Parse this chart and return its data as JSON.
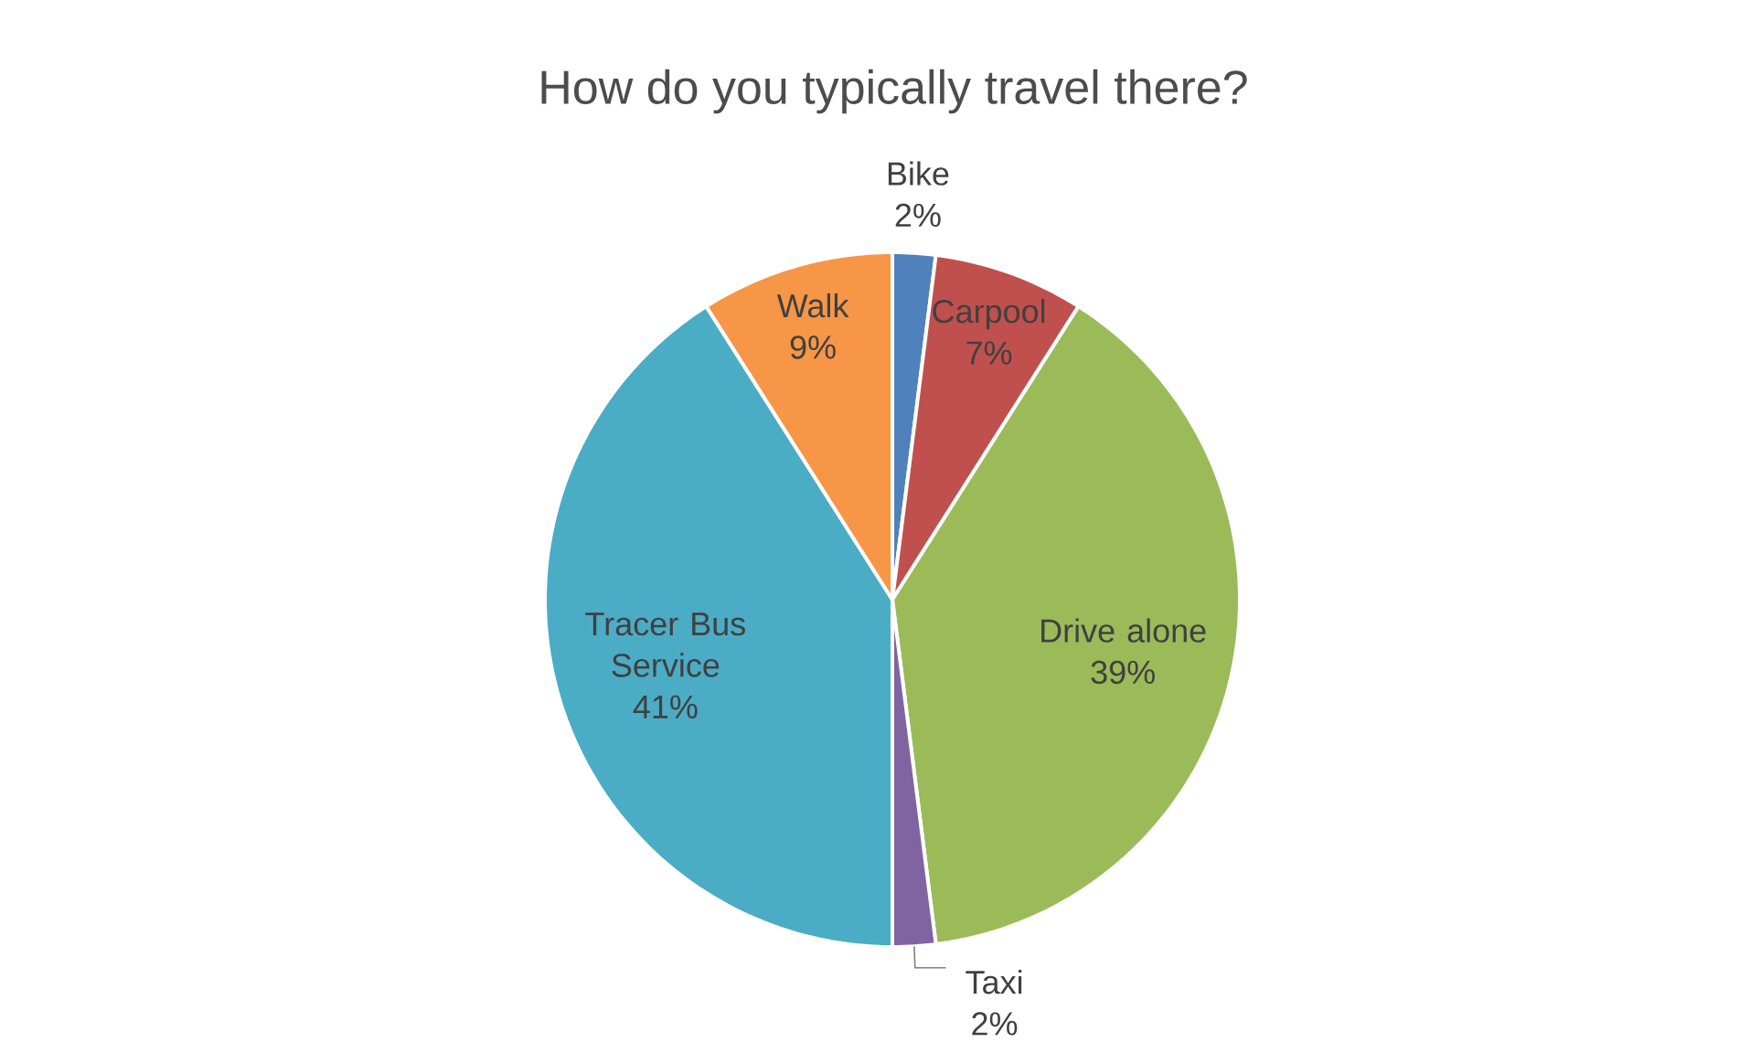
{
  "chart_data": {
    "type": "pie",
    "title": "How do you typically travel there?",
    "categories": [
      "Bike",
      "Carpool",
      "Drive alone",
      "Taxi",
      "Tracer Bus Service",
      "Walk"
    ],
    "values": [
      2,
      7,
      39,
      2,
      41,
      9
    ],
    "value_labels": [
      "2%",
      "7%",
      "39%",
      "2%",
      "41%",
      "9%"
    ],
    "colors": [
      "#4f81bd",
      "#c0504d",
      "#9bbb59",
      "#8064a2",
      "#4bacc6",
      "#f79646"
    ]
  }
}
